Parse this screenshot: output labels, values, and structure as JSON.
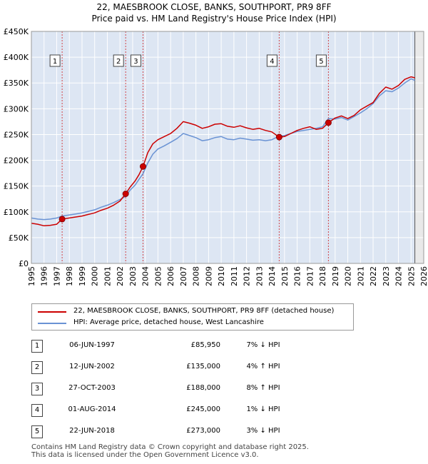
{
  "chart_data": {
    "type": "line",
    "title": "22, MAESBROOK CLOSE, BANKS, SOUTHPORT, PR9 8FF",
    "subtitle": "Price paid vs. HM Land Registry's House Price Index (HPI)",
    "xlim": [
      1995,
      2026
    ],
    "ylim": [
      0,
      450000
    ],
    "x_ticks": [
      "1995",
      "1996",
      "1997",
      "1998",
      "1999",
      "2000",
      "2001",
      "2002",
      "2003",
      "2004",
      "2005",
      "2006",
      "2007",
      "2008",
      "2009",
      "2010",
      "2011",
      "2012",
      "2013",
      "2014",
      "2015",
      "2016",
      "2017",
      "2018",
      "2019",
      "2020",
      "2021",
      "2022",
      "2023",
      "2024",
      "2025",
      "2026"
    ],
    "y_ticks": [
      {
        "value": 0,
        "label": "£0"
      },
      {
        "value": 50000,
        "label": "£50K"
      },
      {
        "value": 100000,
        "label": "£100K"
      },
      {
        "value": 150000,
        "label": "£150K"
      },
      {
        "value": 200000,
        "label": "£200K"
      },
      {
        "value": 250000,
        "label": "£250K"
      },
      {
        "value": 300000,
        "label": "£300K"
      },
      {
        "value": 350000,
        "label": "£350K"
      },
      {
        "value": 400000,
        "label": "£400K"
      },
      {
        "value": 450000,
        "label": "£450K"
      }
    ],
    "series": [
      {
        "name": "22, MAESBROOK CLOSE, BANKS, SOUTHPORT, PR9 8FF (detached house)",
        "color": "#cc0000",
        "x": [
          1995.0,
          1995.5,
          1996.0,
          1996.5,
          1997.0,
          1997.43,
          1998.0,
          1998.5,
          1999.0,
          1999.5,
          2000.0,
          2000.5,
          2001.0,
          2001.5,
          2002.0,
          2002.45,
          2002.8,
          2003.2,
          2003.5,
          2003.82,
          2004.2,
          2004.6,
          2005.0,
          2005.5,
          2006.0,
          2006.5,
          2007.0,
          2007.5,
          2008.0,
          2008.5,
          2009.0,
          2009.5,
          2010.0,
          2010.5,
          2011.0,
          2011.5,
          2012.0,
          2012.5,
          2013.0,
          2013.5,
          2014.0,
          2014.58,
          2015.0,
          2015.5,
          2016.0,
          2016.5,
          2017.0,
          2017.5,
          2018.0,
          2018.47,
          2019.0,
          2019.5,
          2020.0,
          2020.5,
          2021.0,
          2021.5,
          2022.0,
          2022.5,
          2023.0,
          2023.5,
          2024.0,
          2024.5,
          2025.0,
          2025.3
        ],
        "y": [
          78000,
          76000,
          73000,
          74000,
          76000,
          85950,
          88000,
          90000,
          92000,
          95000,
          98000,
          103000,
          107000,
          113000,
          121000,
          135000,
          148000,
          160000,
          172000,
          188000,
          215000,
          232000,
          240000,
          246000,
          252000,
          262000,
          275000,
          272000,
          268000,
          262000,
          265000,
          270000,
          271000,
          266000,
          264000,
          267000,
          263000,
          260000,
          262000,
          258000,
          255000,
          245000,
          246000,
          252000,
          258000,
          262000,
          265000,
          260000,
          262000,
          273000,
          282000,
          286000,
          281000,
          287000,
          298000,
          305000,
          312000,
          330000,
          342000,
          338000,
          345000,
          357000,
          362000,
          360000
        ]
      },
      {
        "name": "HPI: Average price, detached house, West Lancashire",
        "color": "#6a93d4",
        "x": [
          1995.0,
          1995.5,
          1996.0,
          1996.5,
          1997.0,
          1997.43,
          1998.0,
          1998.5,
          1999.0,
          1999.5,
          2000.0,
          2000.5,
          2001.0,
          2001.5,
          2002.0,
          2002.45,
          2002.8,
          2003.2,
          2003.5,
          2003.82,
          2004.2,
          2004.6,
          2005.0,
          2005.5,
          2006.0,
          2006.5,
          2007.0,
          2007.5,
          2008.0,
          2008.5,
          2009.0,
          2009.5,
          2010.0,
          2010.5,
          2011.0,
          2011.5,
          2012.0,
          2012.5,
          2013.0,
          2013.5,
          2014.0,
          2014.58,
          2015.0,
          2015.5,
          2016.0,
          2016.5,
          2017.0,
          2017.5,
          2018.0,
          2018.47,
          2019.0,
          2019.5,
          2020.0,
          2020.5,
          2021.0,
          2021.5,
          2022.0,
          2022.5,
          2023.0,
          2023.5,
          2024.0,
          2024.5,
          2025.0,
          2025.3
        ],
        "y": [
          88000,
          86000,
          85000,
          86000,
          88000,
          92000,
          94000,
          96000,
          98000,
          101000,
          104000,
          109000,
          113000,
          118000,
          124000,
          130000,
          142000,
          152000,
          163000,
          174000,
          195000,
          212000,
          222000,
          228000,
          235000,
          242000,
          252000,
          248000,
          244000,
          238000,
          240000,
          244000,
          246000,
          241000,
          240000,
          243000,
          241000,
          239000,
          240000,
          238000,
          240000,
          247000,
          248000,
          252000,
          256000,
          258000,
          260000,
          262000,
          265000,
          281000,
          280000,
          283000,
          278000,
          285000,
          292000,
          300000,
          310000,
          325000,
          335000,
          333000,
          340000,
          350000,
          358000,
          355000
        ]
      }
    ],
    "events": [
      {
        "id": "1",
        "x": 1997.43,
        "price": 85950
      },
      {
        "id": "2",
        "x": 2002.45,
        "price": 135000
      },
      {
        "id": "3",
        "x": 2003.82,
        "price": 188000
      },
      {
        "id": "4",
        "x": 2014.58,
        "price": 245000
      },
      {
        "id": "5",
        "x": 2018.47,
        "price": 273000
      }
    ],
    "forecast_start": 2025.3
  },
  "legend": {
    "property_label": "22, MAESBROOK CLOSE, BANKS, SOUTHPORT, PR9 8FF (detached house)",
    "hpi_label": "HPI: Average price, detached house, West Lancashire"
  },
  "transactions": [
    {
      "id": "1",
      "date": "06-JUN-1997",
      "price": "£85,950",
      "hpi": "7% ↓ HPI"
    },
    {
      "id": "2",
      "date": "12-JUN-2002",
      "price": "£135,000",
      "hpi": "4% ↑ HPI"
    },
    {
      "id": "3",
      "date": "27-OCT-2003",
      "price": "£188,000",
      "hpi": "8% ↑ HPI"
    },
    {
      "id": "4",
      "date": "01-AUG-2014",
      "price": "£245,000",
      "hpi": "1% ↓ HPI"
    },
    {
      "id": "5",
      "date": "22-JUN-2018",
      "price": "£273,000",
      "hpi": "3% ↓ HPI"
    }
  ],
  "footer": {
    "line1": "Contains HM Land Registry data © Crown copyright and database right 2025.",
    "line2": "This data is licensed under the Open Government Licence v3.0."
  },
  "colors": {
    "property": "#cc0000",
    "hpi": "#6a93d4",
    "shade": "#dde6f3",
    "grid": "#ffffff"
  }
}
